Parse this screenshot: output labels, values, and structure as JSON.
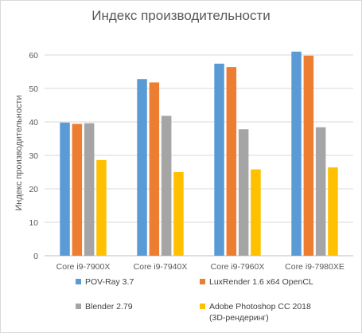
{
  "chart_data": {
    "type": "bar",
    "title": "Индекс производительности",
    "xlabel": "",
    "ylabel": "Индекс производительности",
    "ylim": [
      0,
      60
    ],
    "yticks": [
      0,
      10,
      20,
      30,
      40,
      50,
      60
    ],
    "grid": true,
    "legend_position": "bottom",
    "categories": [
      "Core i9-7900X",
      "Core i9-7940X",
      "Core i9-7960X",
      "Core i9-7980XE"
    ],
    "series": [
      {
        "name": "POV-Ray 3.7",
        "color": "#5b9bd5",
        "values": [
          39.8,
          52.8,
          57.4,
          61.0
        ]
      },
      {
        "name": "LuxRender 1.6 x64 OpenCL",
        "color": "#ed7d31",
        "values": [
          39.4,
          51.8,
          56.4,
          59.8
        ]
      },
      {
        "name": "Blender 2.79",
        "color": "#a5a5a5",
        "values": [
          39.6,
          41.8,
          37.8,
          38.4
        ]
      },
      {
        "name": "Adobe Photoshop CC 2018 (3D-рендеринг)",
        "color": "#ffc000",
        "values": [
          28.6,
          25.0,
          25.8,
          26.4
        ]
      }
    ]
  }
}
